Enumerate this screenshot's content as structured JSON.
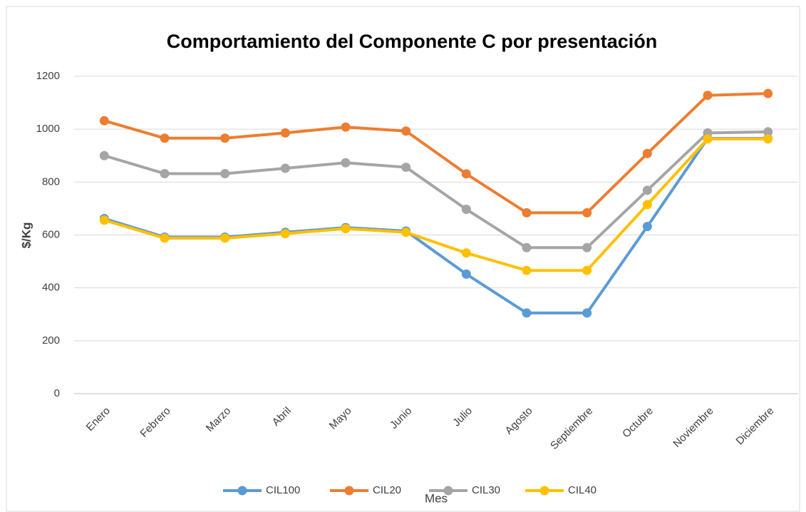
{
  "chart_data": {
    "type": "line",
    "title": "Comportamiento del Componente C por presentación",
    "x_label": "Mes",
    "y_label": "$/Kg",
    "categories": [
      "Enero",
      "Febrero",
      "Marzo",
      "Abril",
      "Mayo",
      "Junio",
      "Julio",
      "Agosto",
      "Septiembre",
      "Octubre",
      "Noviembre",
      "Diciembre"
    ],
    "series": [
      {
        "name": "CIL100",
        "color": "#5b9bd5",
        "values": [
          662,
          592,
          592,
          610,
          628,
          615,
          452,
          305,
          305,
          632,
          965,
          965
        ]
      },
      {
        "name": "CIL20",
        "color": "#ed7d31",
        "values": [
          1032,
          966,
          966,
          986,
          1008,
          993,
          831,
          684,
          684,
          908,
          1128,
          1135
        ]
      },
      {
        "name": "CIL30",
        "color": "#a5a5a5",
        "values": [
          900,
          832,
          832,
          852,
          873,
          856,
          697,
          552,
          552,
          769,
          986,
          990
        ]
      },
      {
        "name": "CIL40",
        "color": "#ffc000",
        "values": [
          656,
          588,
          588,
          605,
          624,
          610,
          532,
          466,
          466,
          715,
          963,
          963
        ]
      }
    ],
    "ylim": [
      0,
      1200
    ],
    "yticks": [
      0,
      200,
      400,
      600,
      800,
      1000,
      1200
    ],
    "grid": true,
    "legend": "bottom"
  }
}
